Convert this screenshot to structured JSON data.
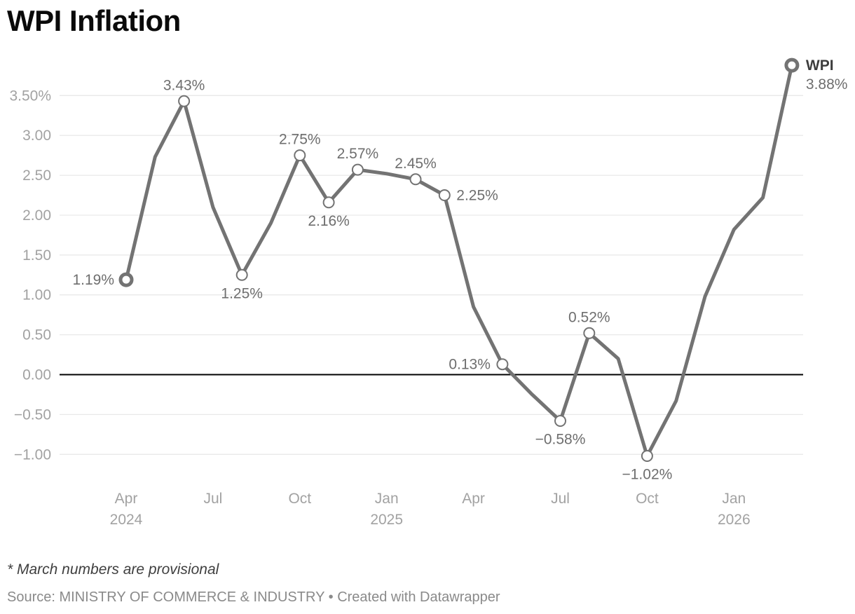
{
  "title": "WPI Inflation",
  "footnote": "* March numbers are provisional",
  "source": {
    "prefix": "Source: ",
    "name": "MINISTRY OF COMMERCE & INDUSTRY",
    "separator": " • ",
    "credit": "Created with Datawrapper"
  },
  "colors": {
    "line": "#737373",
    "marker_fill": "#ffffff",
    "data_label": "#6e6e6e",
    "axis_text": "#a2a2a2",
    "gridline": "#e9e9e9",
    "zero_line": "#000000",
    "end_label_name": "#3d3d3d",
    "title": "#0a0a0a",
    "footnote": "#3f3f3f",
    "source": "#8a8a8a"
  },
  "chart_data": {
    "type": "line",
    "title": "WPI Inflation",
    "series_name": "WPI",
    "legend_position": "end-of-line",
    "grid": true,
    "ylim": [
      -1.25,
      3.95
    ],
    "y_axis": {
      "ticks": [
        {
          "label": "3.50%",
          "value": 3.5
        },
        {
          "label": "3.00",
          "value": 3.0
        },
        {
          "label": "2.50",
          "value": 2.5
        },
        {
          "label": "2.00",
          "value": 2.0
        },
        {
          "label": "1.50",
          "value": 1.5
        },
        {
          "label": "1.00",
          "value": 1.0
        },
        {
          "label": "0.50",
          "value": 0.5
        },
        {
          "label": "0.00",
          "value": 0.0
        },
        {
          "label": "−0.50",
          "value": -0.5
        },
        {
          "label": "−1.00",
          "value": -1.0
        }
      ]
    },
    "x_axis": {
      "ticks": [
        {
          "label": "Apr",
          "sub": "2024",
          "month_index": 0
        },
        {
          "label": "Jul",
          "month_index": 3
        },
        {
          "label": "Oct",
          "month_index": 6
        },
        {
          "label": "Jan",
          "sub": "2025",
          "month_index": 9
        },
        {
          "label": "Apr",
          "month_index": 12
        },
        {
          "label": "Jul",
          "month_index": 15
        },
        {
          "label": "Oct",
          "month_index": 18
        },
        {
          "label": "Jan",
          "sub": "2026",
          "month_index": 21
        }
      ]
    },
    "points": [
      {
        "month": "Apr 2024",
        "value": 1.19,
        "label": "1.19%",
        "label_pos": "left",
        "marker": "bold"
      },
      {
        "month": "May 2024",
        "value": 2.73
      },
      {
        "month": "Jun 2024",
        "value": 3.43,
        "label": "3.43%",
        "label_pos": "above",
        "marker": "open"
      },
      {
        "month": "Jul 2024",
        "value": 2.1
      },
      {
        "month": "Aug 2024",
        "value": 1.25,
        "label": "1.25%",
        "label_pos": "below",
        "marker": "open"
      },
      {
        "month": "Sep 2024",
        "value": 1.9
      },
      {
        "month": "Oct 2024",
        "value": 2.75,
        "label": "2.75%",
        "label_pos": "above",
        "marker": "open"
      },
      {
        "month": "Nov 2024",
        "value": 2.16,
        "label": "2.16%",
        "label_pos": "below",
        "marker": "open"
      },
      {
        "month": "Dec 2024",
        "value": 2.57,
        "label": "2.57%",
        "label_pos": "above",
        "marker": "open"
      },
      {
        "month": "Jan 2025",
        "value": 2.52
      },
      {
        "month": "Feb 2025",
        "value": 2.45,
        "label": "2.45%",
        "label_pos": "above",
        "marker": "open"
      },
      {
        "month": "Mar 2025",
        "value": 2.25,
        "label": "2.25%",
        "label_pos": "right",
        "marker": "open"
      },
      {
        "month": "Apr 2025",
        "value": 0.85
      },
      {
        "month": "May 2025",
        "value": 0.13,
        "label": "0.13%",
        "label_pos": "left",
        "marker": "open"
      },
      {
        "month": "Jun 2025",
        "value": -0.24
      },
      {
        "month": "Jul 2025",
        "value": -0.58,
        "label": "−0.58%",
        "label_pos": "below",
        "marker": "open"
      },
      {
        "month": "Aug 2025",
        "value": 0.52,
        "label": "0.52%",
        "label_pos": "above",
        "marker": "open"
      },
      {
        "month": "Sep 2025",
        "value": 0.2
      },
      {
        "month": "Oct 2025",
        "value": -1.02,
        "label": "−1.02%",
        "label_pos": "below",
        "marker": "open"
      },
      {
        "month": "Nov 2025",
        "value": -0.33
      },
      {
        "month": "Dec 2025",
        "value": 0.98
      },
      {
        "month": "Jan 2026",
        "value": 1.82
      },
      {
        "month": "Feb 2026",
        "value": 2.22
      },
      {
        "month": "Mar 2026",
        "value": 3.88,
        "marker": "bold",
        "is_end": true
      }
    ],
    "end_label": {
      "name": "WPI",
      "value": "3.88%"
    }
  }
}
